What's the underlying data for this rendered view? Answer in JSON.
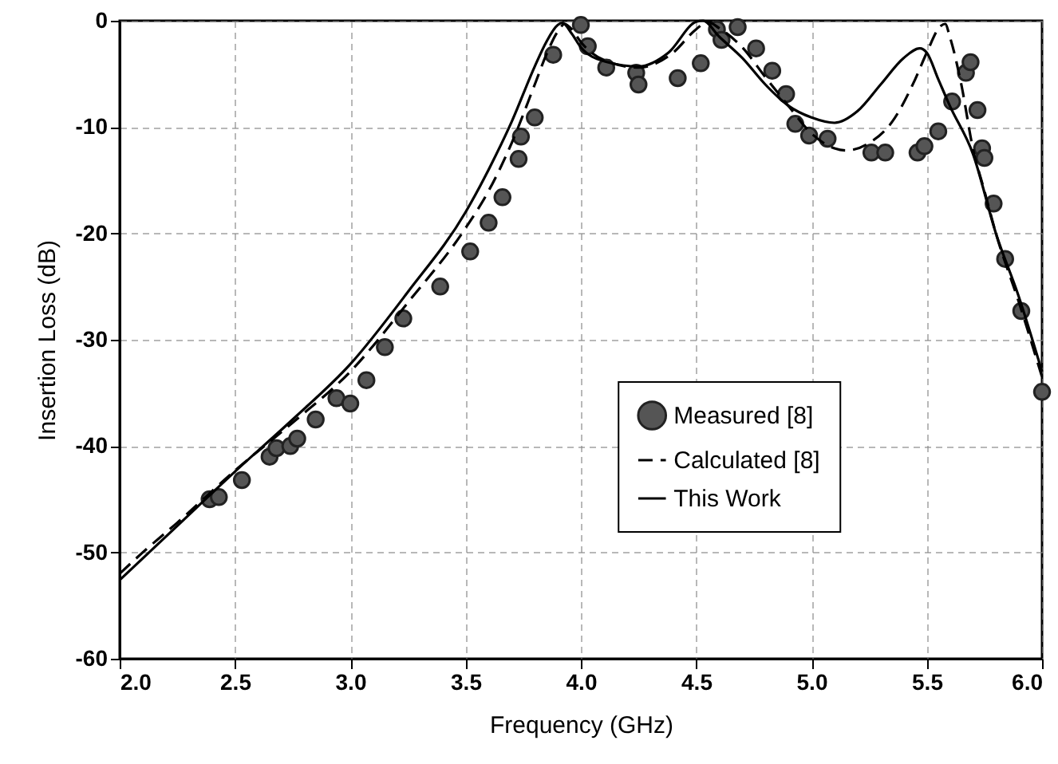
{
  "chart_data": {
    "type": "line",
    "xlabel": "Frequency (GHz)",
    "ylabel": "Insertion Loss (dB)",
    "xlim": [
      2.0,
      6.0
    ],
    "ylim": [
      -60,
      0
    ],
    "xticks": [
      {
        "value": 2,
        "label": "2.0"
      },
      {
        "value": 2.5,
        "label": "2.5"
      },
      {
        "value": 3,
        "label": "3.0"
      },
      {
        "value": 3.5,
        "label": "3.5"
      },
      {
        "value": 4,
        "label": "4.0"
      },
      {
        "value": 4.5,
        "label": "4.5"
      },
      {
        "value": 5,
        "label": "5.0"
      },
      {
        "value": 5.5,
        "label": "5.5"
      },
      {
        "value": 6,
        "label": "6.0"
      }
    ],
    "yticks": [
      -60,
      -50,
      -40,
      -30,
      -20,
      -10,
      0
    ],
    "grid": true,
    "legend": "right",
    "series": [
      {
        "name": "Measured [8]",
        "type": "scatter",
        "marker": "circle",
        "color": "#555555",
        "x": [
          2.39,
          2.43,
          2.53,
          2.65,
          2.68,
          2.74,
          2.77,
          2.85,
          2.94,
          3.0,
          3.07,
          3.15,
          3.23,
          3.39,
          3.52,
          3.6,
          3.66,
          3.73,
          3.74,
          3.8,
          3.88,
          4.0,
          4.03,
          4.11,
          4.24,
          4.25,
          4.42,
          4.52,
          4.59,
          4.61,
          4.68,
          4.76,
          4.83,
          4.89,
          4.93,
          4.99,
          5.07,
          5.26,
          5.32,
          5.46,
          5.49,
          5.55,
          5.61,
          5.67,
          5.69,
          5.72,
          5.74,
          5.75,
          5.79,
          5.84,
          5.91,
          6.0
        ],
        "values": [
          -45.0,
          -44.8,
          -43.2,
          -41.0,
          -40.2,
          -40.0,
          -39.3,
          -37.5,
          -35.5,
          -36.0,
          -33.8,
          -30.7,
          -28.0,
          -25.0,
          -21.7,
          -19.0,
          -16.6,
          -13.0,
          -10.9,
          -9.1,
          -3.2,
          -0.4,
          -2.4,
          -4.4,
          -4.9,
          -6.0,
          -5.4,
          -4.0,
          -0.8,
          -1.8,
          -0.6,
          -2.6,
          -4.7,
          -6.9,
          -9.7,
          -10.8,
          -11.1,
          -12.4,
          -12.4,
          -12.4,
          -11.8,
          -10.4,
          -7.6,
          -4.9,
          -3.9,
          -8.4,
          -12.0,
          -12.9,
          -17.2,
          -22.4,
          -27.3,
          -34.9
        ]
      },
      {
        "name": "Calculated [8]",
        "line_style": "dashed",
        "color": "#000000",
        "x": [
          2.0,
          2.1,
          2.25,
          2.5,
          2.75,
          3.0,
          3.25,
          3.5,
          3.6,
          3.7,
          3.8,
          3.85,
          3.9,
          3.93,
          3.96,
          4.0,
          4.1,
          4.25,
          4.4,
          4.5,
          4.55,
          4.6,
          4.7,
          4.8,
          4.9,
          5.0,
          5.1,
          5.15,
          5.25,
          5.35,
          5.45,
          5.5,
          5.56,
          5.58,
          5.6,
          5.65,
          5.7,
          5.75,
          5.8,
          5.9,
          6.0
        ],
        "values": [
          -52.0,
          -50.0,
          -47.2,
          -42.3,
          -37.8,
          -33.0,
          -26.5,
          -19.5,
          -16.0,
          -11.5,
          -6.0,
          -3.2,
          -1.0,
          -0.3,
          -0.8,
          -2.0,
          -3.7,
          -4.4,
          -3.0,
          -0.8,
          -0.1,
          -0.7,
          -2.5,
          -5.3,
          -8.0,
          -10.6,
          -12.0,
          -12.2,
          -11.5,
          -9.5,
          -5.5,
          -3.0,
          -0.5,
          -0.3,
          -1.5,
          -6.0,
          -12.0,
          -16.0,
          -20.0,
          -26.5,
          -33.5
        ]
      },
      {
        "name": "This Work",
        "line_style": "solid",
        "color": "#000000",
        "x": [
          2.0,
          2.25,
          2.5,
          2.75,
          3.0,
          3.25,
          3.5,
          3.6,
          3.7,
          3.8,
          3.85,
          3.9,
          3.92,
          3.96,
          4.0,
          4.1,
          4.25,
          4.38,
          4.5,
          4.53,
          4.6,
          4.7,
          4.8,
          4.9,
          5.0,
          5.1,
          5.2,
          5.3,
          5.4,
          5.47,
          5.5,
          5.55,
          5.6,
          5.7,
          5.8,
          5.9,
          6.0
        ],
        "values": [
          -52.6,
          -47.5,
          -42.4,
          -37.5,
          -32.3,
          -25.5,
          -18.0,
          -14.0,
          -9.5,
          -4.3,
          -2.0,
          -0.4,
          -0.2,
          -1.2,
          -2.5,
          -3.8,
          -4.3,
          -3.0,
          -0.1,
          0.0,
          -1.5,
          -3.5,
          -6.0,
          -8.0,
          -9.1,
          -9.6,
          -8.5,
          -6.0,
          -3.5,
          -2.6,
          -3.0,
          -5.5,
          -8.0,
          -12.5,
          -20.0,
          -26.0,
          -33.0
        ]
      }
    ]
  }
}
